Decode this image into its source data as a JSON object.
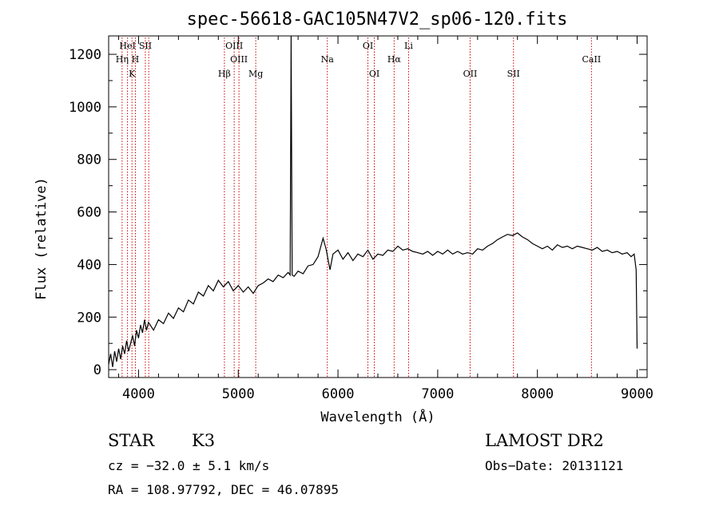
{
  "chart_data": {
    "type": "line",
    "title": "spec-56618-GAC105N47V2_sp06-120.fits",
    "xlabel": "Wavelength (Å)",
    "ylabel": "Flux (relative)",
    "xlim": [
      3700,
      9100
    ],
    "ylim": [
      -30,
      1270
    ],
    "xticks": [
      4000,
      5000,
      6000,
      7000,
      8000,
      9000
    ],
    "yticks": [
      0,
      200,
      400,
      600,
      800,
      1000,
      1200
    ],
    "series": [
      {
        "color": "#000000",
        "points": [
          [
            3700,
            20
          ],
          [
            3720,
            60
          ],
          [
            3740,
            10
          ],
          [
            3760,
            70
          ],
          [
            3780,
            30
          ],
          [
            3800,
            80
          ],
          [
            3820,
            40
          ],
          [
            3840,
            90
          ],
          [
            3860,
            60
          ],
          [
            3880,
            110
          ],
          [
            3900,
            70
          ],
          [
            3920,
            100
          ],
          [
            3940,
            130
          ],
          [
            3960,
            90
          ],
          [
            3980,
            150
          ],
          [
            4000,
            120
          ],
          [
            4020,
            170
          ],
          [
            4040,
            140
          ],
          [
            4060,
            190
          ],
          [
            4080,
            150
          ],
          [
            4100,
            180
          ],
          [
            4150,
            150
          ],
          [
            4200,
            190
          ],
          [
            4250,
            175
          ],
          [
            4300,
            215
          ],
          [
            4350,
            195
          ],
          [
            4400,
            235
          ],
          [
            4450,
            220
          ],
          [
            4500,
            265
          ],
          [
            4550,
            250
          ],
          [
            4600,
            295
          ],
          [
            4650,
            280
          ],
          [
            4700,
            320
          ],
          [
            4750,
            300
          ],
          [
            4800,
            340
          ],
          [
            4850,
            315
          ],
          [
            4900,
            335
          ],
          [
            4950,
            300
          ],
          [
            5000,
            320
          ],
          [
            5050,
            295
          ],
          [
            5100,
            315
          ],
          [
            5150,
            290
          ],
          [
            5200,
            320
          ],
          [
            5250,
            330
          ],
          [
            5300,
            345
          ],
          [
            5350,
            335
          ],
          [
            5400,
            360
          ],
          [
            5450,
            350
          ],
          [
            5500,
            370
          ],
          [
            5520,
            360
          ],
          [
            5530,
            1270
          ],
          [
            5540,
            360
          ],
          [
            5560,
            355
          ],
          [
            5600,
            375
          ],
          [
            5650,
            365
          ],
          [
            5700,
            395
          ],
          [
            5750,
            400
          ],
          [
            5800,
            430
          ],
          [
            5850,
            500
          ],
          [
            5880,
            460
          ],
          [
            5920,
            380
          ],
          [
            5950,
            440
          ],
          [
            6000,
            455
          ],
          [
            6050,
            420
          ],
          [
            6100,
            445
          ],
          [
            6150,
            415
          ],
          [
            6200,
            440
          ],
          [
            6250,
            430
          ],
          [
            6300,
            455
          ],
          [
            6350,
            420
          ],
          [
            6400,
            440
          ],
          [
            6450,
            435
          ],
          [
            6500,
            455
          ],
          [
            6550,
            450
          ],
          [
            6600,
            470
          ],
          [
            6650,
            455
          ],
          [
            6700,
            460
          ],
          [
            6750,
            450
          ],
          [
            6800,
            445
          ],
          [
            6850,
            440
          ],
          [
            6900,
            450
          ],
          [
            6950,
            435
          ],
          [
            7000,
            450
          ],
          [
            7050,
            440
          ],
          [
            7100,
            455
          ],
          [
            7150,
            440
          ],
          [
            7200,
            450
          ],
          [
            7250,
            440
          ],
          [
            7300,
            445
          ],
          [
            7350,
            440
          ],
          [
            7400,
            460
          ],
          [
            7450,
            455
          ],
          [
            7500,
            470
          ],
          [
            7550,
            480
          ],
          [
            7600,
            495
          ],
          [
            7650,
            505
          ],
          [
            7700,
            515
          ],
          [
            7750,
            510
          ],
          [
            7800,
            520
          ],
          [
            7850,
            505
          ],
          [
            7900,
            495
          ],
          [
            7950,
            480
          ],
          [
            8000,
            470
          ],
          [
            8050,
            460
          ],
          [
            8100,
            470
          ],
          [
            8150,
            455
          ],
          [
            8200,
            475
          ],
          [
            8250,
            465
          ],
          [
            8300,
            470
          ],
          [
            8350,
            460
          ],
          [
            8400,
            470
          ],
          [
            8450,
            465
          ],
          [
            8500,
            460
          ],
          [
            8550,
            455
          ],
          [
            8600,
            465
          ],
          [
            8650,
            450
          ],
          [
            8700,
            455
          ],
          [
            8750,
            445
          ],
          [
            8800,
            450
          ],
          [
            8850,
            440
          ],
          [
            8900,
            445
          ],
          [
            8940,
            430
          ],
          [
            8970,
            440
          ],
          [
            8990,
            380
          ],
          [
            9000,
            80
          ]
        ]
      }
    ],
    "annotations": [
      {
        "label": "HeI",
        "x": 3889,
        "row": 0
      },
      {
        "label": "Hη",
        "x": 3835,
        "row": 1
      },
      {
        "label": "SII",
        "x": 4068,
        "row": 0
      },
      {
        "label": "H",
        "x": 3968,
        "row": 1
      },
      {
        "label": "K",
        "x": 3934,
        "row": 2
      },
      {
        "label": "OIII",
        "x": 4959,
        "row": 0
      },
      {
        "label": "OIII",
        "x": 5007,
        "row": 1
      },
      {
        "label": "Hβ",
        "x": 4861,
        "row": 2
      },
      {
        "label": "Mg",
        "x": 5175,
        "row": 2
      },
      {
        "label": "Na",
        "x": 5893,
        "row": 1
      },
      {
        "label": "OI",
        "x": 6300,
        "row": 0
      },
      {
        "label": "OI",
        "x": 6364,
        "row": 2
      },
      {
        "label": "Hα",
        "x": 6563,
        "row": 1
      },
      {
        "label": "Li",
        "x": 6708,
        "row": 0
      },
      {
        "label": "OII",
        "x": 7325,
        "row": 2
      },
      {
        "label": "SII",
        "x": 7760,
        "row": 2
      },
      {
        "label": "CaII",
        "x": 8542,
        "row": 1
      }
    ],
    "vlines": [
      3835,
      3889,
      3934,
      3968,
      4068,
      4102,
      4861,
      4959,
      5007,
      5175,
      5893,
      6300,
      6364,
      6563,
      6708,
      7325,
      7760,
      8542
    ],
    "line_color": "#cc0000",
    "grid": false
  },
  "info": {
    "class": "STAR",
    "subclass": "K3",
    "survey": "LAMOST DR2",
    "cz": "cz = −32.0 ± 5.1 km/s",
    "obs_date": "Obs−Date: 20131121",
    "coords": "RA = 108.97792, DEC =  46.07895"
  }
}
